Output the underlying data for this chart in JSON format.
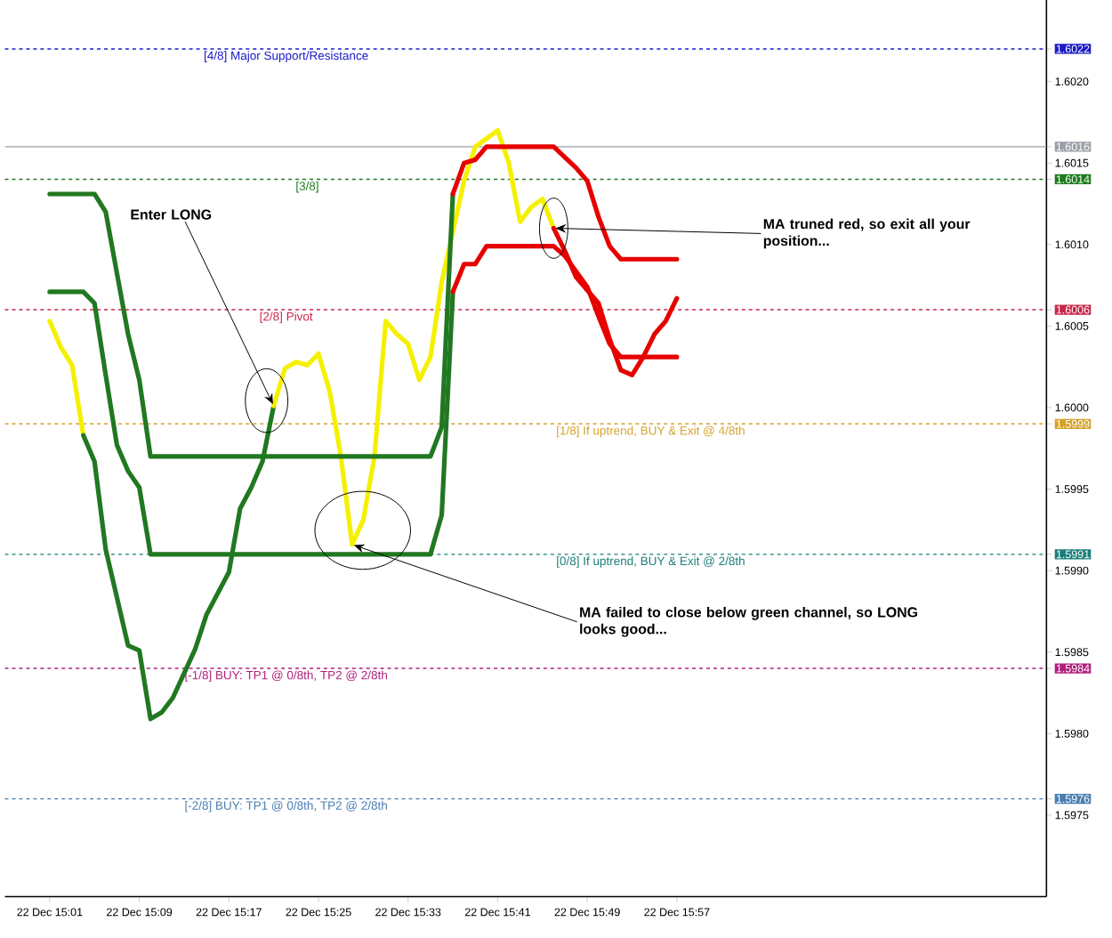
{
  "chart_data": {
    "type": "line",
    "xlim": [
      "--12-22T14:57",
      "--12-22T16:30"
    ],
    "ylim": [
      1.597,
      1.6025
    ],
    "xticks": [
      {
        "value": "--12-22T15:01",
        "label": "22 Dec 15:01"
      },
      {
        "value": "--12-22T15:09",
        "label": "22 Dec 15:09"
      },
      {
        "value": "--12-22T15:17",
        "label": "22 Dec 15:17"
      },
      {
        "value": "--12-22T15:25",
        "label": "22 Dec 15:25"
      },
      {
        "value": "--12-22T15:33",
        "label": "22 Dec 15:33"
      },
      {
        "value": "--12-22T15:41",
        "label": "22 Dec 15:41"
      },
      {
        "value": "--12-22T15:49",
        "label": "22 Dec 15:49"
      },
      {
        "value": "--12-22T15:57",
        "label": "22 Dec 15:57"
      }
    ],
    "yticks": [
      {
        "value": 1.5975,
        "label": "1.5975"
      },
      {
        "value": 1.598,
        "label": "1.5980"
      },
      {
        "value": 1.5985,
        "label": "1.5985"
      },
      {
        "value": 1.599,
        "label": "1.5990"
      },
      {
        "value": 1.5995,
        "label": "1.5995"
      },
      {
        "value": 1.6,
        "label": "1.6000"
      },
      {
        "value": 1.6005,
        "label": "1.6005"
      },
      {
        "value": 1.601,
        "label": "1.6010"
      },
      {
        "value": 1.6015,
        "label": "1.6015"
      },
      {
        "value": 1.602,
        "label": "1.6020"
      },
      {
        "value": 1.5976,
        "label": "1.5976"
      },
      {
        "value": 1.5984,
        "label": "1.5984"
      },
      {
        "value": 1.5991,
        "label": "1.5991"
      },
      {
        "value": 1.5999,
        "label": "1.5999"
      },
      {
        "value": 1.6006,
        "label": "1.6006"
      },
      {
        "value": 1.6014,
        "label": "1.6014"
      },
      {
        "value": 1.6016,
        "label": "1.6016"
      },
      {
        "value": 1.6022,
        "label": "1.6022"
      }
    ],
    "series": [
      {
        "color": "#f5f000",
        "x": [
          "--12-22T15:01",
          "--12-22T15:02",
          "--12-22T15:03",
          "--12-22T15:04"
        ],
        "values": [
          1.60053,
          1.60037,
          1.60026,
          1.59983
        ]
      },
      {
        "color": "#217821",
        "x": [
          "--12-22T15:04",
          "--12-22T15:05",
          "--12-22T15:06",
          "--12-22T15:08",
          "--12-22T15:09",
          "--12-22T15:10",
          "--12-22T15:11",
          "--12-22T15:12",
          "--12-22T15:14",
          "--12-22T15:15",
          "--12-22T15:17",
          "--12-22T15:18",
          "--12-22T15:19",
          "--12-22T15:20",
          "--12-22T15:21"
        ],
        "values": [
          1.59983,
          1.59967,
          1.59913,
          1.59854,
          1.59851,
          1.59809,
          1.59813,
          1.59822,
          1.59852,
          1.59873,
          1.59899,
          1.59938,
          1.59951,
          1.59967,
          1.60001
        ]
      },
      {
        "color": "#f5f000",
        "x": [
          "--12-22T15:21",
          "--12-22T15:22",
          "--12-22T15:23",
          "--12-22T15:24",
          "--12-22T15:25",
          "--12-22T15:26",
          "--12-22T15:27",
          "--12-22T15:28",
          "--12-22T15:29",
          "--12-22T15:30",
          "--12-22T15:31",
          "--12-22T15:32",
          "--12-22T15:33",
          "--12-22T15:34",
          "--12-22T15:35",
          "--12-22T15:36",
          "--12-22T15:38",
          "--12-22T15:39",
          "--12-22T15:41",
          "--12-22T15:42",
          "--12-22T15:43",
          "--12-22T15:44",
          "--12-22T15:45",
          "--12-22T15:46"
        ],
        "values": [
          1.60001,
          1.60024,
          1.60028,
          1.60026,
          1.60033,
          1.6001,
          1.5997,
          1.59916,
          1.59931,
          1.5997,
          1.60053,
          1.60045,
          1.60039,
          1.60017,
          1.60031,
          1.60077,
          1.60139,
          1.6016,
          1.6017,
          1.6015,
          1.60114,
          1.60123,
          1.60128,
          1.6011
        ]
      },
      {
        "color": "#e60000",
        "x": [
          "--12-22T15:46",
          "--12-22T15:47",
          "--12-22T15:48",
          "--12-22T15:50",
          "--12-22T15:51",
          "--12-22T15:52",
          "--12-22T15:53",
          "--12-22T15:54",
          "--12-22T15:55",
          "--12-22T15:56",
          "--12-22T15:57"
        ],
        "values": [
          1.6011,
          1.60096,
          1.6008,
          1.60064,
          1.60042,
          1.60023,
          1.6002,
          1.60031,
          1.60045,
          1.60053,
          1.60067
        ]
      },
      {
        "color": "#217821",
        "x": [
          "--12-22T15:01",
          "--12-22T15:05",
          "--12-22T15:06",
          "--12-22T15:08",
          "--12-22T15:09",
          "--12-22T15:10",
          "--12-22T15:35",
          "--12-22T15:36",
          "--12-22T15:37"
        ],
        "values": [
          1.60131,
          1.60131,
          1.6012,
          1.60045,
          1.60017,
          1.5997,
          1.5997,
          1.59988,
          1.60131
        ]
      },
      {
        "color": "#e60000",
        "x": [
          "--12-22T15:37",
          "--12-22T15:38",
          "--12-22T15:39",
          "--12-22T15:40",
          "--12-22T15:46",
          "--12-22T15:48",
          "--12-22T15:49",
          "--12-22T15:50",
          "--12-22T15:51",
          "--12-22T15:52",
          "--12-22T15:57"
        ],
        "values": [
          1.60131,
          1.6015,
          1.60152,
          1.6016,
          1.6016,
          1.60147,
          1.60139,
          1.60117,
          1.60099,
          1.60091,
          1.60091
        ]
      },
      {
        "color": "#217821",
        "x": [
          "--12-22T15:01",
          "--12-22T15:04",
          "--12-22T15:05",
          "--12-22T15:06",
          "--12-22T15:07",
          "--12-22T15:08",
          "--12-22T15:09",
          "--12-22T15:10",
          "--12-22T15:35",
          "--12-22T15:36",
          "--12-22T15:37"
        ],
        "values": [
          1.60071,
          1.60071,
          1.60064,
          1.6002,
          1.59977,
          1.59961,
          1.59951,
          1.5991,
          1.5991,
          1.59934,
          1.60071
        ]
      },
      {
        "color": "#e60000",
        "x": [
          "--12-22T15:37",
          "--12-22T15:38",
          "--12-22T15:39",
          "--12-22T15:40",
          "--12-22T15:46",
          "--12-22T15:47",
          "--12-22T15:49",
          "--12-22T15:50",
          "--12-22T15:51",
          "--12-22T15:52",
          "--12-22T15:57"
        ],
        "values": [
          1.60071,
          1.60088,
          1.60088,
          1.60099,
          1.60099,
          1.60093,
          1.60074,
          1.60056,
          1.60039,
          1.60031,
          1.60031
        ]
      }
    ],
    "ref_lines": [
      {
        "axis": "y",
        "value": 1.6022,
        "label": "[4/8] Major Support/Resistance",
        "color": "#1c1cc8",
        "line_style": "dashed"
      },
      {
        "axis": "y",
        "value": 1.6016,
        "label": null,
        "color": "#9aa0a6",
        "line_style": "solid"
      },
      {
        "axis": "y",
        "value": 1.6014,
        "label": null,
        "color": "#1e7a1e",
        "line_style": "dashed"
      },
      {
        "axis": "y",
        "value": 1.6006,
        "label": "[2/8] Pivot",
        "color": "#c8284a",
        "line_style": "dashed"
      },
      {
        "axis": "y",
        "value": 1.5999,
        "label": "[1/8] If uptrend, BUY & Exit @ 4/8th",
        "color": "#d4a22a",
        "line_style": "dashed"
      },
      {
        "axis": "y",
        "value": 1.5991,
        "label": "[0/8] If uptrend, BUY & Exit @ 2/8th",
        "color": "#1a7f7a",
        "line_style": "dashed"
      },
      {
        "axis": "y",
        "value": 1.5984,
        "label": "[-1/8] BUY: TP1 @ 0/8th, TP2 @ 2/8th",
        "color": "#b0207e",
        "line_style": "dashed"
      },
      {
        "axis": "y",
        "value": 1.5976,
        "label": "[-2/8] BUY: TP1 @ 0/8th, TP2 @ 2/8th",
        "color": "#4a7eb0",
        "line_style": "dashed"
      }
    ],
    "annotations": [
      {
        "text": "Enter LONG",
        "x": "--12-22T15:21",
        "y": 1.60001
      },
      {
        "text": "MA truned red, so exit all your position...",
        "x": "--12-22T15:46",
        "y": 1.6011
      },
      {
        "text": "MA failed to close below green channel, so LONG looks good...",
        "x": "--12-22T15:28",
        "y": 1.59916
      },
      {
        "text": "[3/8]",
        "x": "--12-22T15:24",
        "y": 1.6014
      }
    ]
  }
}
